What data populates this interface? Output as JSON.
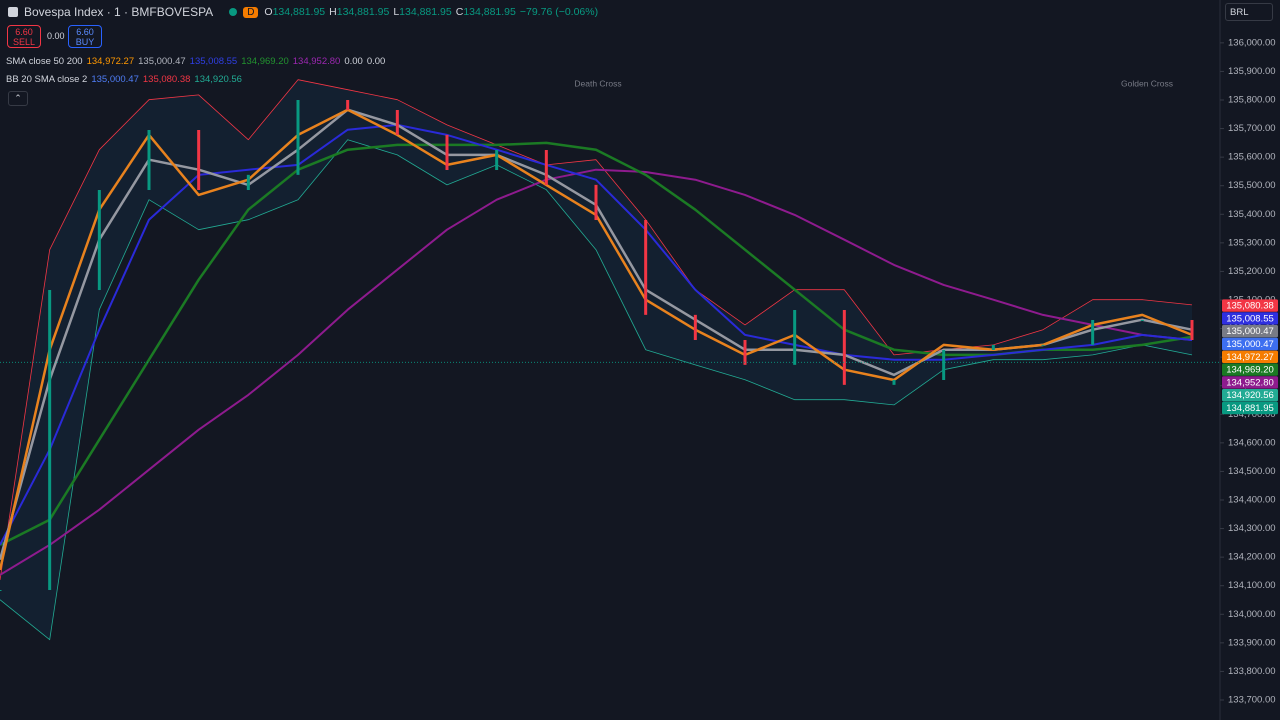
{
  "header": {
    "title": "Bovespa Index · 1 · BMFBOVESPA",
    "interval_badge": "D",
    "ohlc": [
      {
        "key": "O",
        "value": "134,881.95"
      },
      {
        "key": "H",
        "value": "134,881.95"
      },
      {
        "key": "L",
        "value": "134,881.95"
      },
      {
        "key": "C",
        "value": "134,881.95"
      }
    ],
    "change": "−79.76 (−0.06%)"
  },
  "trade": {
    "sell_price": "6.60",
    "sell": "SELL",
    "spread": "0.00",
    "buy_price": "6.60",
    "buy": "BUY"
  },
  "indicators": [
    {
      "name": "SMA close 50 200",
      "values": [
        {
          "text": "134,972.27",
          "color": "#ff9800"
        },
        {
          "text": "135,000.47",
          "color": "#b2b5be"
        },
        {
          "text": "135,008.55",
          "color": "#2f3fe6"
        },
        {
          "text": "134,969.20",
          "color": "#22922f"
        },
        {
          "text": "134,952.80",
          "color": "#9c27b0"
        },
        {
          "text": "0.00",
          "color": "#d1d4dc"
        },
        {
          "text": "0.00",
          "color": "#d1d4dc"
        }
      ]
    },
    {
      "name": "BB 20 SMA close 2",
      "values": [
        {
          "text": "135,000.47",
          "color": "#4f7df5"
        },
        {
          "text": "135,080.38",
          "color": "#f23645"
        },
        {
          "text": "134,920.56",
          "color": "#22ab94"
        }
      ]
    }
  ],
  "currency": "BRL",
  "chart_data": {
    "type": "line",
    "ylim": [
      133630,
      136150
    ],
    "yticks": [
      {
        "value": 133700,
        "label": "133,700.00"
      },
      {
        "value": 133800,
        "label": "133,800.00"
      },
      {
        "value": 133900,
        "label": "133,900.00"
      },
      {
        "value": 134000,
        "label": "134,000.00"
      },
      {
        "value": 134100,
        "label": "134,100.00"
      },
      {
        "value": 134200,
        "label": "134,200.00"
      },
      {
        "value": 134300,
        "label": "134,300.00"
      },
      {
        "value": 134400,
        "label": "134,400.00"
      },
      {
        "value": 134500,
        "label": "134,500.00"
      },
      {
        "value": 134600,
        "label": "134,600.00"
      },
      {
        "value": 134700,
        "label": "134,700.00"
      },
      {
        "value": 134800,
        "label": "134,800.00"
      },
      {
        "value": 134900,
        "label": "134,900.00"
      },
      {
        "value": 135000,
        "label": "135,000.00"
      },
      {
        "value": 135100,
        "label": "135,100.00"
      },
      {
        "value": 135200,
        "label": "135,200.00"
      },
      {
        "value": 135300,
        "label": "135,300.00"
      },
      {
        "value": 135400,
        "label": "135,400.00"
      },
      {
        "value": 135500,
        "label": "135,500.00"
      },
      {
        "value": 135600,
        "label": "135,600.00"
      },
      {
        "value": 135700,
        "label": "135,700.00"
      },
      {
        "value": 135800,
        "label": "135,800.00"
      },
      {
        "value": 135900,
        "label": "135,900.00"
      },
      {
        "value": 136000,
        "label": "136,000.00"
      }
    ],
    "grid": false,
    "fill_between": [
      1,
      2
    ],
    "series": [
      {
        "style": "candles",
        "up_color": "#089981",
        "color": "#f23645",
        "values": [
          134085,
          135135,
          135485,
          135695,
          135485,
          135538,
          135800,
          135765,
          135678,
          135555,
          135625,
          135503,
          135380,
          135048,
          134960,
          134873,
          135065,
          134803,
          134820,
          134925,
          134943,
          134943,
          135030,
          135030,
          134960
        ]
      },
      {
        "color": "#f23645",
        "width": 0.8,
        "values": [
          134120,
          135276,
          135626,
          135801,
          135818,
          135661,
          135871,
          135836,
          135801,
          135713,
          135643,
          135573,
          135591,
          135381,
          135136,
          135013,
          135136,
          135136,
          134908,
          134926,
          134943,
          134996,
          135101,
          135101,
          135083
        ]
      },
      {
        "color": "#22ab94",
        "width": 0.8,
        "values": [
          134051,
          133911,
          135066,
          135451,
          135346,
          135381,
          135451,
          135661,
          135608,
          135503,
          135573,
          135486,
          135276,
          134926,
          134873,
          134821,
          134751,
          134751,
          134733,
          134856,
          134891,
          134891,
          134908,
          134943,
          134908
        ]
      },
      {
        "color": "#8e1b8e",
        "width": 2,
        "values": [
          134138,
          134243,
          134366,
          134506,
          134646,
          134768,
          134908,
          135066,
          135206,
          135346,
          135451,
          135521,
          135556,
          135548,
          135521,
          135468,
          135398,
          135311,
          135223,
          135153,
          135101,
          135048,
          135013,
          134978,
          134960
        ]
      },
      {
        "color": "#1b7a24",
        "width": 2.5,
        "values": [
          134243,
          134331,
          134611,
          134891,
          135171,
          135416,
          135556,
          135626,
          135643,
          135643,
          135643,
          135650,
          135626,
          135538,
          135416,
          135276,
          135136,
          134996,
          134926,
          134908,
          134908,
          134926,
          134926,
          134943,
          134971
        ]
      },
      {
        "color": "#2a2ad8",
        "width": 2,
        "values": [
          134243,
          134576,
          134996,
          135381,
          135538,
          135556,
          135573,
          135696,
          135713,
          135678,
          135626,
          135573,
          135521,
          135346,
          135136,
          134978,
          134943,
          134908,
          134891,
          134891,
          134908,
          134926,
          134943,
          134978,
          134960
        ]
      },
      {
        "color": "#9598a1",
        "width": 2.5,
        "values": [
          134191,
          134821,
          135311,
          135591,
          135556,
          135503,
          135626,
          135766,
          135713,
          135608,
          135608,
          135538,
          135433,
          135136,
          135031,
          134926,
          134926,
          134908,
          134838,
          134926,
          134926,
          134943,
          134996,
          135031,
          134996
        ]
      },
      {
        "color": "#e8821e",
        "width": 2.5,
        "values": [
          134155,
          134926,
          135416,
          135678,
          135468,
          135521,
          135678,
          135766,
          135678,
          135573,
          135608,
          135503,
          135398,
          135101,
          134996,
          134908,
          134978,
          134856,
          134820,
          134943,
          134926,
          134943,
          135013,
          135048,
          134978
        ]
      }
    ],
    "annotations": [
      {
        "text": "Death Cross"
      },
      {
        "text": "Golden Cross"
      }
    ],
    "last_values": [
      {
        "value": 135080.38,
        "label": "135,080.38",
        "color": "#f23645"
      },
      {
        "value": 135008.55,
        "label": "135,008.55",
        "color": "#2f2fe0"
      },
      {
        "value": 135000.47,
        "label": "135,000.47",
        "color": "#787b86"
      },
      {
        "value": 135000.47,
        "label": "135,000.47",
        "color": "#3d6ff0"
      },
      {
        "value": 134972.27,
        "label": "134,972.27",
        "color": "#f57c00"
      },
      {
        "value": 134969.2,
        "label": "134,969.20",
        "color": "#1b7a24"
      },
      {
        "value": 134952.8,
        "label": "134,952.80",
        "color": "#8e1b8e"
      },
      {
        "value": 134920.56,
        "label": "134,920.56",
        "color": "#22ab94"
      },
      {
        "value": 134881.95,
        "label": "134,881.95",
        "color": "#089981"
      }
    ]
  }
}
